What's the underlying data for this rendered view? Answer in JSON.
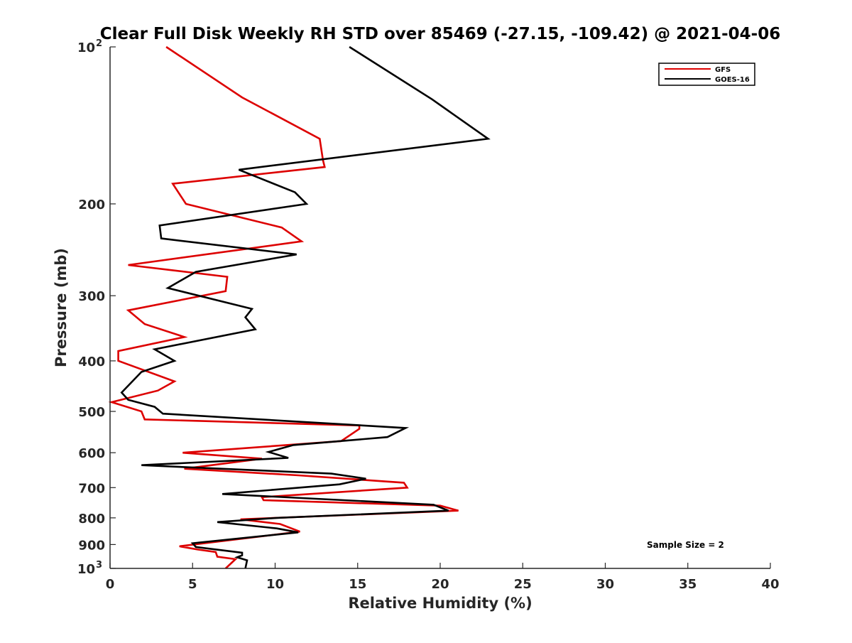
{
  "chart_data": {
    "type": "line",
    "title": "Clear Full Disk Weekly RH STD over 85469 (-27.15, -109.42) @ 2021-04-06",
    "xlabel": "Relative Humidity (%)",
    "ylabel": "Pressure (mb)",
    "xlim": [
      0,
      40
    ],
    "ylim": [
      100,
      1000
    ],
    "y_scale": "log",
    "y_reversed": true,
    "x_ticks": [
      "0",
      "5",
      "10",
      "15",
      "20",
      "25",
      "30",
      "35",
      "40"
    ],
    "y_ticks": [
      {
        "value": 100,
        "base": "10",
        "sup": "2"
      },
      {
        "value": 200,
        "label": "200"
      },
      {
        "value": 300,
        "label": "300"
      },
      {
        "value": 400,
        "label": "400"
      },
      {
        "value": 500,
        "label": "500"
      },
      {
        "value": 600,
        "label": "600"
      },
      {
        "value": 700,
        "label": "700"
      },
      {
        "value": 800,
        "label": "800"
      },
      {
        "value": 900,
        "label": "900"
      },
      {
        "value": 1000,
        "base": "10",
        "sup": "3"
      }
    ],
    "grid": false,
    "legend_position": "top-right",
    "series": [
      {
        "name": "GFS",
        "color": "#dd0000",
        "points": [
          [
            3.4,
            100
          ],
          [
            8,
            125
          ],
          [
            12.7,
            150
          ],
          [
            12.9,
            165
          ],
          [
            13.0,
            170
          ],
          [
            3.8,
            183
          ],
          [
            4.6,
            200
          ],
          [
            10.4,
            222
          ],
          [
            11.6,
            236
          ],
          [
            1.1,
            262
          ],
          [
            7.1,
            276
          ],
          [
            7.0,
            294
          ],
          [
            1.1,
            320
          ],
          [
            2.1,
            340
          ],
          [
            4.5,
            360
          ],
          [
            0.5,
            383
          ],
          [
            0.5,
            400
          ],
          [
            3.9,
            438
          ],
          [
            2.9,
            456
          ],
          [
            0.1,
            480
          ],
          [
            1.9,
            500
          ],
          [
            2.1,
            518
          ],
          [
            15.1,
            532
          ],
          [
            15.1,
            540
          ],
          [
            14.0,
            570
          ],
          [
            4.4,
            600
          ],
          [
            9.2,
            616
          ],
          [
            4.5,
            644
          ],
          [
            11.4,
            663
          ],
          [
            17.8,
            685
          ],
          [
            18.0,
            700
          ],
          [
            9.2,
            730
          ],
          [
            9.3,
            740
          ],
          [
            20.0,
            758
          ],
          [
            21.1,
            775
          ],
          [
            7.9,
            805
          ],
          [
            10.3,
            822
          ],
          [
            11.5,
            850
          ],
          [
            4.2,
            907
          ],
          [
            5.3,
            920
          ],
          [
            6.4,
            930
          ],
          [
            6.5,
            950
          ],
          [
            7.6,
            960
          ],
          [
            7.0,
            1000
          ]
        ]
      },
      {
        "name": "GOES-16",
        "color": "#000000",
        "points": [
          [
            14.5,
            100
          ],
          [
            19.5,
            126
          ],
          [
            22.9,
            150
          ],
          [
            7.8,
            172
          ],
          [
            11.2,
            190
          ],
          [
            11.9,
            200
          ],
          [
            3.0,
            220
          ],
          [
            3.1,
            233
          ],
          [
            11.3,
            250
          ],
          [
            5.2,
            270
          ],
          [
            3.5,
            290
          ],
          [
            8.6,
            318
          ],
          [
            8.2,
            330
          ],
          [
            8.8,
            348
          ],
          [
            2.7,
            380
          ],
          [
            3.9,
            400
          ],
          [
            1.9,
            420
          ],
          [
            0.7,
            460
          ],
          [
            1.1,
            475
          ],
          [
            2.7,
            490
          ],
          [
            3.2,
            505
          ],
          [
            17.9,
            538
          ],
          [
            16.8,
            560
          ],
          [
            11.1,
            580
          ],
          [
            9.6,
            598
          ],
          [
            10.8,
            614
          ],
          [
            1.9,
            634
          ],
          [
            13.4,
            658
          ],
          [
            15.5,
            673
          ],
          [
            13.9,
            690
          ],
          [
            6.8,
            720
          ],
          [
            19.6,
            755
          ],
          [
            20.5,
            775
          ],
          [
            10.1,
            800
          ],
          [
            6.5,
            815
          ],
          [
            10.1,
            838
          ],
          [
            11.4,
            853
          ],
          [
            5.0,
            895
          ],
          [
            5.2,
            910
          ],
          [
            8.0,
            933
          ],
          [
            8.0,
            944
          ],
          [
            7.7,
            952
          ],
          [
            8.3,
            965
          ],
          [
            8.2,
            1000
          ]
        ]
      }
    ],
    "annotation": "Sample Size = 2"
  }
}
